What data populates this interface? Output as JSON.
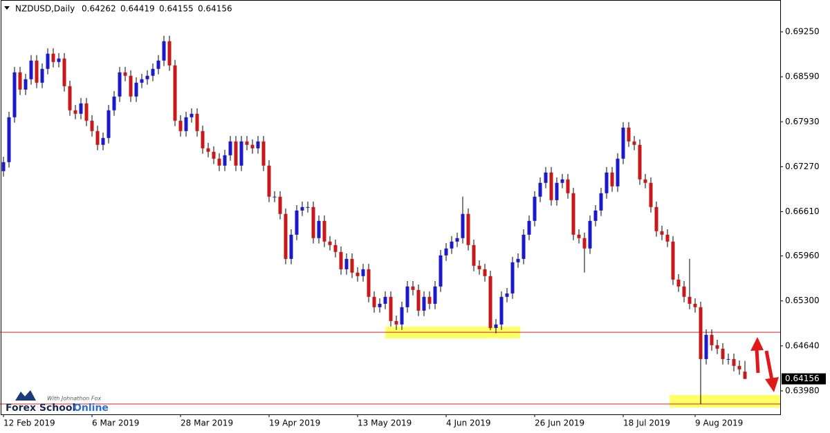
{
  "chart_data": {
    "type": "candlestick",
    "title": "NZDUSD,Daily",
    "bull_color": "#1a1ac8",
    "bear_color": "#c81818",
    "wick_color": "#000000",
    "open": [
      0.67205,
      0.67337,
      0.67996,
      0.68655,
      0.68402,
      0.68554,
      0.68828,
      0.68503,
      0.68706,
      0.68929,
      0.68807,
      0.68858,
      0.68452,
      0.68098,
      0.68047,
      0.68199,
      0.67945,
      0.67793,
      0.67591,
      0.67692,
      0.68098,
      0.683,
      0.68655,
      0.68605,
      0.683,
      0.68503,
      0.68554,
      0.68605,
      0.68706,
      0.68828,
      0.69112,
      0.68757,
      0.67945,
      0.67793,
      0.67996,
      0.68047,
      0.67793,
      0.6754,
      0.67489,
      0.67388,
      0.67286,
      0.67438,
      0.67641,
      0.67286,
      0.67641,
      0.67591,
      0.6754,
      0.67641,
      0.67286,
      0.6683,
      0.6683,
      0.66577,
      0.65917,
      0.66272,
      0.66627,
      0.66678,
      0.66678,
      0.66222,
      0.66475,
      0.66171,
      0.6612,
      0.66019,
      0.65765,
      0.65917,
      0.65715,
      0.65664,
      0.65765,
      0.6536,
      0.65208,
      0.65258,
      0.6536,
      0.65005,
      0.64954,
      0.65208,
      0.65512,
      0.65461,
      0.65157,
      0.6536,
      0.65258,
      0.65512,
      0.65968,
      0.6607,
      0.66171,
      0.66222,
      0.66577,
      0.6612,
      0.65816,
      0.65765,
      0.65664,
      0.64903,
      0.64954,
      0.6536,
      0.6541,
      0.65867,
      0.65917,
      0.66272,
      0.66475,
      0.6683,
      0.67033,
      0.67185,
      0.66779,
      0.67033,
      0.67084,
      0.66881,
      0.66272,
      0.66222,
      0.6607,
      0.66475,
      0.66627,
      0.66881,
      0.67185,
      0.66982,
      0.67388,
      0.67844,
      0.67641,
      0.67591,
      0.67084,
      0.67033,
      0.66678,
      0.66323,
      0.66272,
      0.66171,
      0.65613,
      0.65512,
      0.6536,
      0.65258,
      0.65208,
      0.64447,
      0.64802,
      0.6465,
      0.64599,
      0.64447,
      0.64447,
      0.64346,
      0.64262
    ],
    "high": [
      0.67417,
      0.68076,
      0.68735,
      0.68735,
      0.68634,
      0.68908,
      0.68908,
      0.68786,
      0.69009,
      0.69009,
      0.68938,
      0.68938,
      0.68532,
      0.68178,
      0.68279,
      0.68279,
      0.68025,
      0.67873,
      0.67772,
      0.68178,
      0.6838,
      0.68735,
      0.68735,
      0.68685,
      0.68583,
      0.68634,
      0.68685,
      0.68786,
      0.68908,
      0.69192,
      0.69192,
      0.68837,
      0.68025,
      0.68076,
      0.68127,
      0.68127,
      0.67873,
      0.6762,
      0.67569,
      0.67468,
      0.67518,
      0.67721,
      0.67721,
      0.67721,
      0.67721,
      0.67671,
      0.67721,
      0.67721,
      0.67366,
      0.6691,
      0.6691,
      0.66657,
      0.66352,
      0.66707,
      0.66758,
      0.66758,
      0.66758,
      0.66555,
      0.66555,
      0.66251,
      0.662,
      0.66099,
      0.65997,
      0.65997,
      0.65795,
      0.65845,
      0.65845,
      0.6544,
      0.65338,
      0.6544,
      0.6544,
      0.65085,
      0.65288,
      0.65592,
      0.65592,
      0.65541,
      0.6544,
      0.6544,
      0.65592,
      0.66048,
      0.6615,
      0.66251,
      0.66302,
      0.6683,
      0.66657,
      0.662,
      0.65896,
      0.65845,
      0.65744,
      0.65034,
      0.6544,
      0.6549,
      0.65947,
      0.65997,
      0.66352,
      0.66555,
      0.6691,
      0.67113,
      0.67265,
      0.67265,
      0.67113,
      0.67164,
      0.67164,
      0.66961,
      0.66352,
      0.66302,
      0.66555,
      0.66707,
      0.66961,
      0.67265,
      0.67265,
      0.67468,
      0.67924,
      0.67924,
      0.67721,
      0.67671,
      0.67164,
      0.67113,
      0.66758,
      0.66403,
      0.66352,
      0.66251,
      0.65693,
      0.65592,
      0.65917,
      0.65338,
      0.65288,
      0.64882,
      0.64882,
      0.6473,
      0.64679,
      0.64527,
      0.64527,
      0.64426,
      0.64419
    ],
    "low": [
      0.67125,
      0.67257,
      0.67916,
      0.68322,
      0.68322,
      0.68474,
      0.68423,
      0.68423,
      0.68626,
      0.68727,
      0.68727,
      0.68372,
      0.68018,
      0.67967,
      0.67967,
      0.67865,
      0.67713,
      0.67511,
      0.67511,
      0.67612,
      0.68018,
      0.6822,
      0.68525,
      0.6822,
      0.6822,
      0.68423,
      0.68474,
      0.68525,
      0.68626,
      0.68748,
      0.68677,
      0.67865,
      0.67713,
      0.67713,
      0.67916,
      0.67713,
      0.6746,
      0.67409,
      0.67308,
      0.67206,
      0.67206,
      0.67358,
      0.67206,
      0.67206,
      0.67511,
      0.6746,
      0.6746,
      0.67206,
      0.6675,
      0.6675,
      0.66497,
      0.65837,
      0.65837,
      0.66192,
      0.66547,
      0.66598,
      0.66142,
      0.66142,
      0.66091,
      0.6604,
      0.65939,
      0.65685,
      0.65685,
      0.65635,
      0.65584,
      0.65584,
      0.6528,
      0.65128,
      0.65128,
      0.65178,
      0.64925,
      0.64874,
      0.64874,
      0.65128,
      0.65381,
      0.65077,
      0.65077,
      0.65178,
      0.65178,
      0.65432,
      0.65888,
      0.6599,
      0.66091,
      0.66142,
      0.6604,
      0.65736,
      0.65685,
      0.65584,
      0.64873,
      0.64823,
      0.64874,
      0.6528,
      0.6533,
      0.65787,
      0.65837,
      0.66192,
      0.66395,
      0.6675,
      0.66953,
      0.66699,
      0.66699,
      0.66953,
      0.66801,
      0.66192,
      0.66142,
      0.65715,
      0.6599,
      0.66395,
      0.66547,
      0.66801,
      0.66902,
      0.66902,
      0.67308,
      0.67561,
      0.67511,
      0.67004,
      0.66953,
      0.66598,
      0.66243,
      0.66192,
      0.66091,
      0.65533,
      0.65432,
      0.6528,
      0.65178,
      0.65128,
      0.63788,
      0.64367,
      0.6457,
      0.64519,
      0.64367,
      0.64367,
      0.64266,
      0.64215,
      0.64155
    ],
    "close": [
      0.67337,
      0.67996,
      0.68655,
      0.68402,
      0.68554,
      0.68828,
      0.68503,
      0.68706,
      0.68929,
      0.68807,
      0.68858,
      0.68452,
      0.68098,
      0.68047,
      0.68199,
      0.67945,
      0.67793,
      0.67591,
      0.67692,
      0.68098,
      0.683,
      0.68655,
      0.68605,
      0.683,
      0.68503,
      0.68554,
      0.68605,
      0.68706,
      0.68828,
      0.69112,
      0.68757,
      0.67945,
      0.67793,
      0.67996,
      0.68047,
      0.67793,
      0.6754,
      0.67489,
      0.67388,
      0.67286,
      0.67438,
      0.67641,
      0.67286,
      0.67641,
      0.67591,
      0.6754,
      0.67641,
      0.67286,
      0.6683,
      0.6683,
      0.66577,
      0.65917,
      0.66272,
      0.66627,
      0.66678,
      0.66678,
      0.66222,
      0.66475,
      0.66171,
      0.6612,
      0.66019,
      0.65765,
      0.65917,
      0.65715,
      0.65664,
      0.65765,
      0.6536,
      0.65208,
      0.65258,
      0.6536,
      0.65005,
      0.64954,
      0.65208,
      0.65512,
      0.65461,
      0.65157,
      0.6536,
      0.65258,
      0.65512,
      0.65968,
      0.6607,
      0.66171,
      0.66222,
      0.66577,
      0.6612,
      0.65816,
      0.65765,
      0.65664,
      0.64903,
      0.64954,
      0.6536,
      0.6541,
      0.65867,
      0.65917,
      0.66272,
      0.66475,
      0.6683,
      0.67033,
      0.67185,
      0.66779,
      0.67033,
      0.67084,
      0.66881,
      0.66272,
      0.66222,
      0.6607,
      0.66475,
      0.66627,
      0.66881,
      0.67185,
      0.66982,
      0.67388,
      0.67844,
      0.67641,
      0.67591,
      0.67084,
      0.67033,
      0.66678,
      0.66323,
      0.66272,
      0.66171,
      0.65613,
      0.65512,
      0.6536,
      0.65258,
      0.65208,
      0.64447,
      0.64802,
      0.6465,
      0.64599,
      0.64447,
      0.64447,
      0.64346,
      0.64295,
      0.64156
    ],
    "xlim": [
      -0.625,
      140.375
    ],
    "xticks": [
      {
        "value": 0,
        "label": "12 Feb 2019"
      },
      {
        "value": 16,
        "label": "6 Mar 2019"
      },
      {
        "value": 32,
        "label": "28 Mar 2019"
      },
      {
        "value": 48,
        "label": "19 Apr 2019"
      },
      {
        "value": 64,
        "label": "13 May 2019"
      },
      {
        "value": 80,
        "label": "4 Jun 2019"
      },
      {
        "value": 96,
        "label": "26 Jun 2019"
      },
      {
        "value": 112,
        "label": "18 Jul 2019"
      },
      {
        "value": 125,
        "label": "9 Aug 2019"
      }
    ],
    "ylim": [
      0.63635,
      0.69717
    ],
    "yticks": [
      {
        "value": 0.6925,
        "label": "0.69250"
      },
      {
        "value": 0.6859,
        "label": "0.68590"
      },
      {
        "value": 0.6793,
        "label": "0.67930"
      },
      {
        "value": 0.6727,
        "label": "0.67270"
      },
      {
        "value": 0.6661,
        "label": "0.66610"
      },
      {
        "value": 0.6596,
        "label": "0.65960"
      },
      {
        "value": 0.653,
        "label": "0.65300"
      },
      {
        "value": 0.6464,
        "label": "0.64640"
      },
      {
        "value": 0.6398,
        "label": "0.63980"
      }
    ],
    "levels": [
      0.6484,
      0.63787
    ],
    "level_color": "#d42020",
    "zones": [
      {
        "x": [
          69,
          93.4
        ],
        "y": [
          0.6475,
          0.64922
        ]
      },
      {
        "x": [
          120.4,
          140.375
        ],
        "y": [
          0.63736,
          0.63919
        ]
      }
    ],
    "zone_color": "#ffff66"
  },
  "watermark": {
    "brand": "Forex School",
    "brand_accent": "Online",
    "byline": "With Johnathon Fox"
  }
}
